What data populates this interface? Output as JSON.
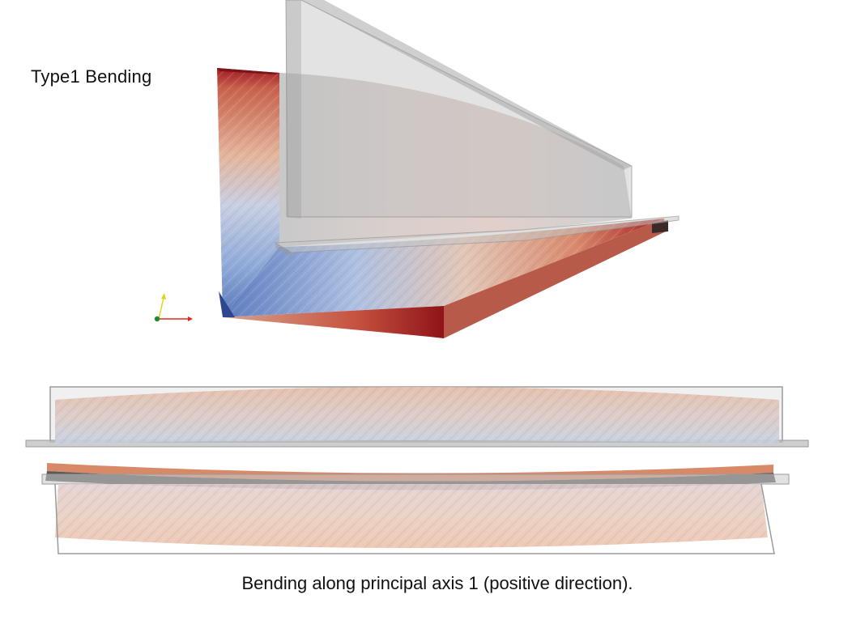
{
  "figure": {
    "title": "Type1 Bending",
    "caption": "Bending along principal axis 1 (positive direction)."
  },
  "colormap": {
    "low": "#3b4cc0",
    "mid": "#dddcdc",
    "high": "#b40426",
    "ghost_fill": "#c8c8c8",
    "ghost_edge": "#8f8f8f"
  },
  "views": [
    {
      "name": "isometric-view",
      "content": "deformed L-section beam with undeformed ghost overlay"
    },
    {
      "name": "front-view",
      "content": "deformed beam elevation, web side"
    },
    {
      "name": "top-view",
      "content": "deformed beam elevation, flange side"
    }
  ],
  "axes_triad": {
    "axes": [
      "x",
      "y",
      "z"
    ],
    "colors": [
      "#e0281e",
      "#e6d21e",
      "#1e8c32"
    ]
  }
}
